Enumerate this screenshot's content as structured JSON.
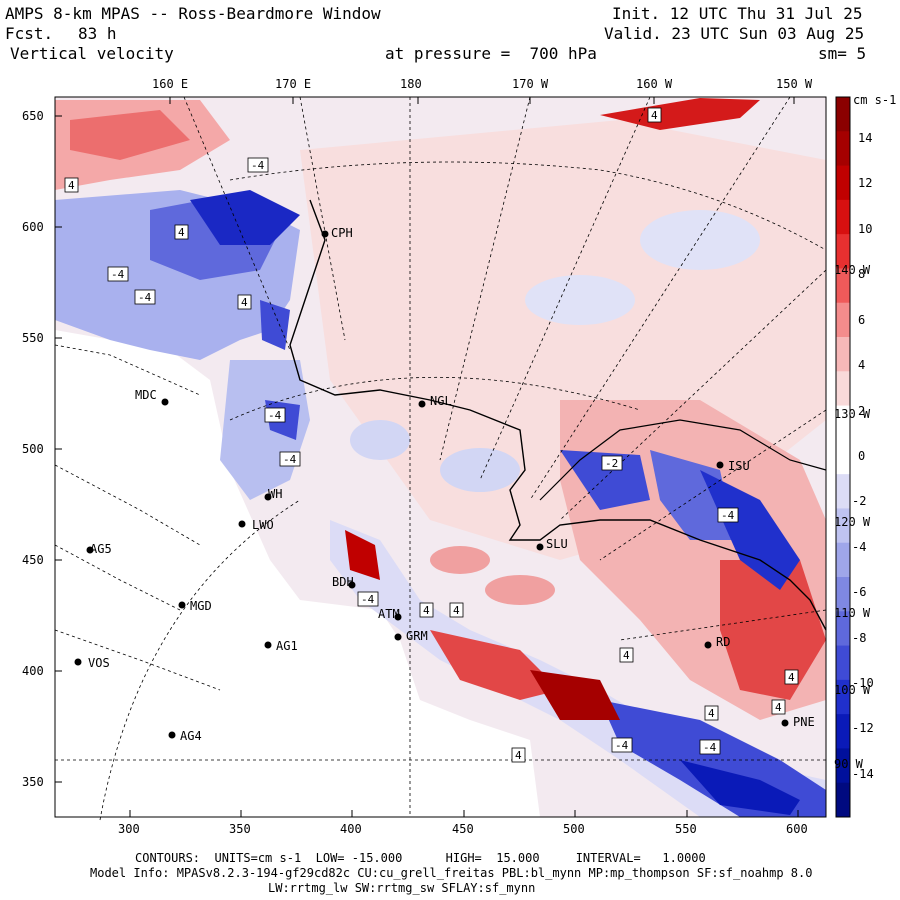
{
  "header": {
    "title": "AMPS 8-km MPAS -- Ross-Beardmore Window",
    "fcst_label": "Fcst.",
    "fcst_value": "83 h",
    "field": "Vertical velocity",
    "pressure_text": "at pressure =  700 hPa",
    "init_text": "Init. 12 UTC Thu 31 Jul 25",
    "valid_text": "Valid. 23 UTC Sun 03 Aug 25",
    "smooth_text": "sm= 5"
  },
  "axes": {
    "top_lon_labels": [
      "160 E",
      "170 E",
      "180",
      "170 W",
      "160 W",
      "150 W"
    ],
    "right_lon_labels": [
      "140 W",
      "130 W",
      "120 W",
      "110 W",
      "100 W",
      "90 W"
    ],
    "y_ticks": [
      "650",
      "600",
      "550",
      "500",
      "450",
      "400",
      "350"
    ],
    "x_ticks": [
      "300",
      "350",
      "400",
      "450",
      "500",
      "550",
      "600"
    ]
  },
  "colorbar": {
    "units": "cm s-1",
    "labels": [
      "14",
      "12",
      "10",
      "8",
      "6",
      "4",
      "2",
      "0",
      "-2",
      "-4",
      "-6",
      "-8",
      "-10",
      "-12",
      "-14"
    ],
    "colors": [
      "#8b0000",
      "#a50000",
      "#c00000",
      "#d81010",
      "#e83030",
      "#ef5a5a",
      "#f48c8c",
      "#f7b8b8",
      "#f9dada",
      "#ffffff",
      "#ffffff",
      "#dcdcf6",
      "#bfc3f1",
      "#9fa6ea",
      "#7f88e2",
      "#5f69dc",
      "#3f4bd5",
      "#2030cc",
      "#0a1ab8",
      "#00109c",
      "#000a80"
    ]
  },
  "stations": [
    {
      "name": "MDC"
    },
    {
      "name": "AG5"
    },
    {
      "name": "LWO"
    },
    {
      "name": "MGD"
    },
    {
      "name": "AG1"
    },
    {
      "name": "VOS"
    },
    {
      "name": "AG4"
    },
    {
      "name": "ATM"
    },
    {
      "name": "GRM"
    },
    {
      "name": "BDH"
    },
    {
      "name": "NGL"
    },
    {
      "name": "SLU"
    },
    {
      "name": "CPH"
    },
    {
      "name": "PNE"
    },
    {
      "name": "RD"
    },
    {
      "name": "ISU"
    },
    {
      "name": "WH"
    }
  ],
  "contour_labels": [
    "4",
    "4",
    "4",
    "-4",
    "-4",
    "-4",
    "4",
    "-4",
    "-4",
    "4",
    "4",
    "4",
    "4",
    "-4",
    "-4",
    "4",
    "4",
    "-4",
    "-2",
    "-4",
    "4"
  ],
  "footer": {
    "contours_line": "CONTOURS:  UNITS=cm s-1  LOW= -15.000      HIGH=  15.000     INTERVAL=   1.0000",
    "model_line": "Model Info: MPASv8.2.3-194-gf29cd82c CU:cu_grell_freitas PBL:bl_mynn MP:mp_thompson SF:sf_noahmp 8.0",
    "physics_line": "LW:rrtmg_lw SW:rrtmg_sw SFLAY:sf_mynn"
  }
}
